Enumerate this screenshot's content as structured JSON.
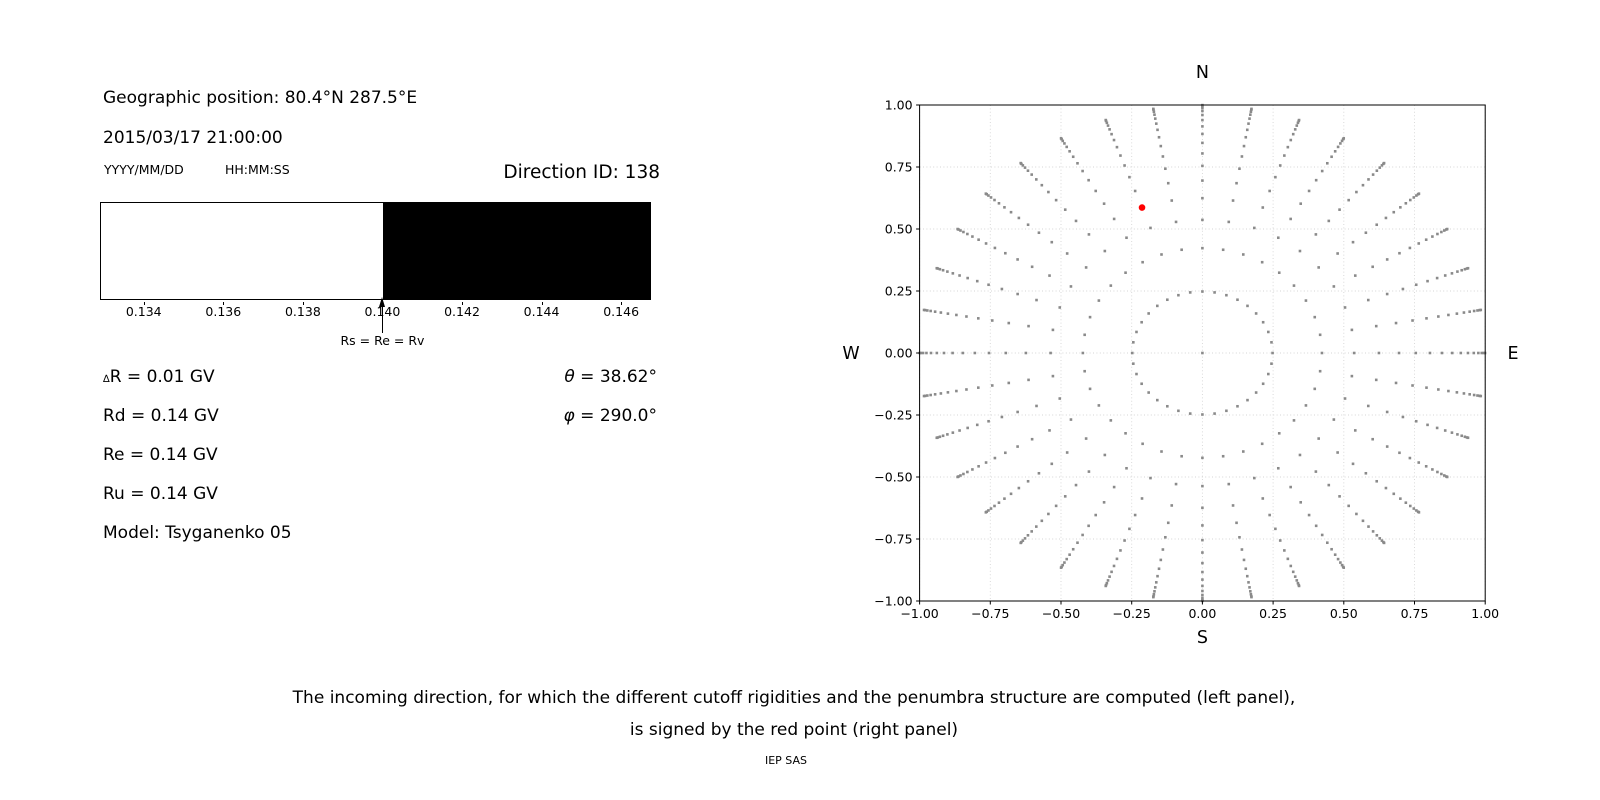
{
  "info": {
    "geographic_position": "Geographic position: 80.4°N 287.5°E",
    "datetime": "2015/03/17 21:00:00",
    "date_format_label": "YYYY/MM/DD",
    "time_format_label": "HH:MM:SS",
    "direction_id_label": "Direction ID: 138",
    "delta_symbol": "∆",
    "delta_rest": "R = 0.01 GV",
    "rd_line": "Rd = 0.14 GV",
    "re_line": "Re = 0.14 GV",
    "ru_line": "Ru = 0.14 GV",
    "model_line": "Model: Tsyganenko 05",
    "theta_symbol": "θ",
    "theta_rest": " = 38.62°",
    "phi_symbol": "φ",
    "phi_rest": " = 290.0°"
  },
  "caption": {
    "line1": "The incoming direction, for which the different cutoff rigidities and the penumbra structure are computed (left panel),",
    "line2": "is signed by the red point (right panel)",
    "credit": "IEP SAS"
  },
  "chart_data": [
    {
      "type": "bar",
      "name": "penumbra-rigidity-bar",
      "xlabel_unit": "GV",
      "xlim": [
        0.1329,
        0.1467
      ],
      "x_ticks": [
        0.134,
        0.136,
        0.138,
        0.14,
        0.142,
        0.144,
        0.146
      ],
      "x_tick_labels": [
        "0.134",
        "0.136",
        "0.138",
        "0.140",
        "0.142",
        "0.144",
        "0.146"
      ],
      "segments": [
        {
          "from": 0.1329,
          "to": 0.14,
          "color": "#ffffff",
          "meaning": "allowed rigidities"
        },
        {
          "from": 0.14,
          "to": 0.1467,
          "color": "#000000",
          "meaning": "forbidden rigidities"
        }
      ],
      "arrow": {
        "x": 0.14,
        "label": "Rs = Re = Rv"
      },
      "values": {
        "delta_R_GV": 0.01,
        "Rd_GV": 0.14,
        "Re_GV": 0.14,
        "Ru_GV": 0.14
      }
    },
    {
      "type": "scatter",
      "name": "incoming-directions-sky-map",
      "xlim": [
        -1.0,
        1.0
      ],
      "ylim": [
        -1.0,
        1.0
      ],
      "x_ticks": [
        -1.0,
        -0.75,
        -0.5,
        -0.25,
        0.0,
        0.25,
        0.5,
        0.75,
        1.0
      ],
      "y_ticks": [
        1.0,
        0.75,
        0.5,
        0.25,
        0.0,
        -0.25,
        -0.5,
        -0.75,
        -1.0
      ],
      "x_tick_labels": [
        "−1.00",
        "−0.75",
        "−0.50",
        "−0.25",
        "0.00",
        "0.25",
        "0.50",
        "0.75",
        "1.00"
      ],
      "y_tick_labels": [
        "1.00",
        "0.75",
        "0.50",
        "0.25",
        "0.00",
        "−0.25",
        "−0.50",
        "−0.75",
        "−1.00"
      ],
      "grid": true,
      "grid_style": "dotted",
      "grid_color": "#d6d6d6",
      "dot_color": "#8a8a8a",
      "compass_labels": {
        "top": "N",
        "bottom": "S",
        "left": "W",
        "right": "E"
      },
      "direction_grid": {
        "azimuth_deg_start": 10,
        "azimuth_deg_step": 10,
        "azimuth_count": 36,
        "zenith_levels": 16,
        "cos_zenith_sampling": "cos_theta = 1 - (k + 0.5) / 16, k = 0..15",
        "radius_mapping": "r = sin(theta)",
        "plot_angle_mapping": "x = -r*cos(azimuth), y = -r*sin(azimuth)",
        "includes_center_point": true
      },
      "selected_direction": {
        "id": 138,
        "zenith_deg": 38.62,
        "azimuth_deg": 290.0,
        "x": -0.2135,
        "y": 0.5866,
        "color": "#ff0000"
      }
    }
  ]
}
